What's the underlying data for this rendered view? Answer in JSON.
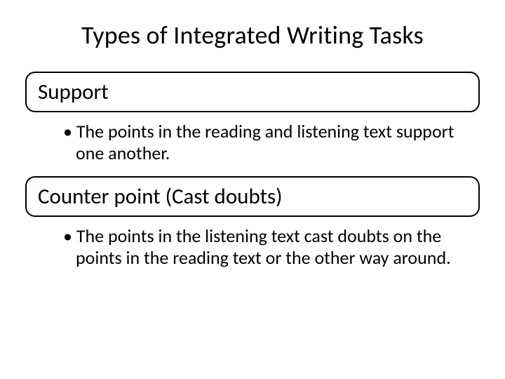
{
  "title": "Types of Integrated Writing Tasks",
  "sections": [
    {
      "header": "Support",
      "bullet": "The points in the reading and listening text support one another."
    },
    {
      "header": "Counter point (Cast doubts)",
      "bullet": "The points in the listening text cast doubts on the points in the reading text or the other way around."
    }
  ],
  "styling": {
    "background_color": "#ffffff",
    "text_color": "#000000",
    "border_color": "#000000",
    "border_width": 2.5,
    "border_radius": 14,
    "title_fontsize": 36,
    "header_fontsize": 31,
    "bullet_fontsize": 26,
    "font_family": "Calibri"
  }
}
